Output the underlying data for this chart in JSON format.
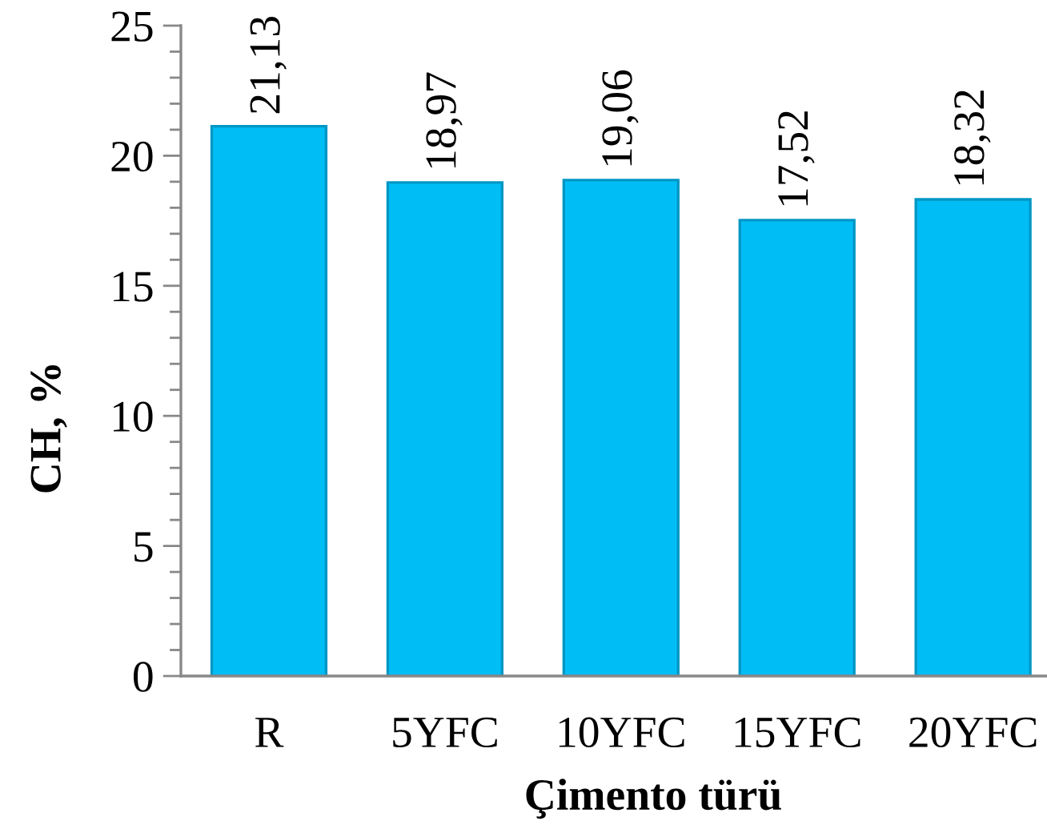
{
  "chart_data": {
    "type": "bar",
    "xlabel": "Çimento türü",
    "ylabel": "CH, %",
    "categories": [
      "R",
      "5YFC",
      "10YFC",
      "15YFC",
      "20YFC"
    ],
    "values": [
      21.13,
      18.97,
      19.06,
      17.52,
      18.32
    ],
    "value_labels": [
      "21,13",
      "18,97",
      "19,06",
      "17,52",
      "18,32"
    ],
    "color": "#00bdf6",
    "ylim": [
      0,
      25
    ],
    "yticks": [
      0,
      {
        "value": 1,
        "label": null
      },
      {
        "value": 2,
        "label": null
      },
      {
        "value": 3,
        "label": null
      },
      {
        "value": 4,
        "label": null
      },
      5,
      {
        "value": 6,
        "label": null
      },
      {
        "value": 7,
        "label": null
      },
      {
        "value": 8,
        "label": null
      },
      {
        "value": 9,
        "label": null
      },
      10,
      {
        "value": 11,
        "label": null
      },
      {
        "value": 12,
        "label": null
      },
      {
        "value": 13,
        "label": null
      },
      {
        "value": 14,
        "label": null
      },
      15,
      {
        "value": 16,
        "label": null
      },
      {
        "value": 17,
        "label": null
      },
      {
        "value": 18,
        "label": null
      },
      {
        "value": 19,
        "label": null
      },
      20,
      {
        "value": 21,
        "label": null
      },
      {
        "value": 22,
        "label": null
      },
      {
        "value": 23,
        "label": null
      },
      {
        "value": 24,
        "label": null
      },
      25
    ],
    "grid": false
  }
}
